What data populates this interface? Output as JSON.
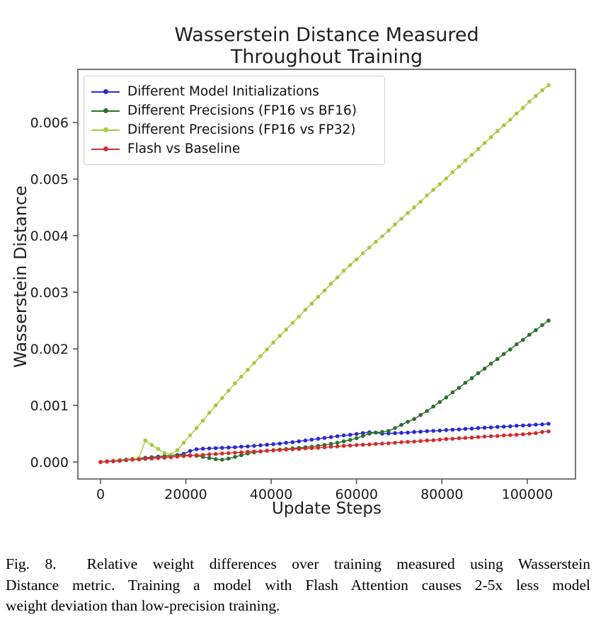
{
  "colors": {
    "blue_series": "#2a2ad2",
    "darkgreen_series": "#2d6e2d",
    "lightgreen_series": "#a5c940",
    "red_series": "#d22c2c",
    "spine": "#4a4a4a",
    "tick_text": "#1a1a1a"
  },
  "chart_data": {
    "type": "line",
    "title": "Wasserstein Distance Measured Throughout Training",
    "title_lines": [
      "Wasserstein Distance Measured",
      "Throughout Training"
    ],
    "xlabel": "Update Steps",
    "ylabel": "Wasserstein Distance",
    "grid": false,
    "legend_position": "upper left",
    "marker": "dot",
    "xlim": [
      -5300,
      111300
    ],
    "ylim": [
      -0.0003,
      0.00694
    ],
    "xticks": [
      {
        "value": 0,
        "label": "0"
      },
      {
        "value": 20000,
        "label": "20000"
      },
      {
        "value": 40000,
        "label": "40000"
      },
      {
        "value": 60000,
        "label": "60000"
      },
      {
        "value": 80000,
        "label": "80000"
      },
      {
        "value": 100000,
        "label": "100000"
      }
    ],
    "yticks": [
      {
        "value": 0.0,
        "label": "0.000"
      },
      {
        "value": 0.001,
        "label": "0.001"
      },
      {
        "value": 0.002,
        "label": "0.002"
      },
      {
        "value": 0.003,
        "label": "0.003"
      },
      {
        "value": 0.004,
        "label": "0.004"
      },
      {
        "value": 0.005,
        "label": "0.005"
      },
      {
        "value": 0.006,
        "label": "0.006"
      }
    ],
    "x": [
      0,
      1500,
      3000,
      4500,
      6000,
      7500,
      9000,
      10500,
      12000,
      13500,
      15000,
      16500,
      18000,
      19500,
      21000,
      22500,
      24000,
      25500,
      27000,
      28500,
      30000,
      31500,
      33000,
      34500,
      36000,
      37500,
      39000,
      40500,
      42000,
      43500,
      45000,
      46500,
      48000,
      49500,
      51000,
      52500,
      54000,
      55500,
      57000,
      58500,
      60000,
      61500,
      63000,
      64500,
      66000,
      67500,
      69000,
      70500,
      72000,
      73500,
      75000,
      76500,
      78000,
      79500,
      81000,
      82500,
      84000,
      85500,
      87000,
      88500,
      90000,
      91500,
      93000,
      94500,
      96000,
      97500,
      99000,
      100500,
      102000,
      103500,
      105000
    ],
    "series": [
      {
        "name": "Different Model Initializations",
        "color": "#2a2ad2",
        "values": [
          0.0,
          1.5e-05,
          2.5e-05,
          3.5e-05,
          4.5e-05,
          5.5e-05,
          6.5e-05,
          7.5e-05,
          8.5e-05,
          9.5e-05,
          0.000105,
          0.000115,
          0.000125,
          0.000145,
          0.000195,
          0.000225,
          0.000235,
          0.00024,
          0.000245,
          0.00025,
          0.000255,
          0.00026,
          0.00027,
          0.000275,
          0.000285,
          0.000295,
          0.000305,
          0.000315,
          0.000325,
          0.00034,
          0.00035,
          0.000365,
          0.00038,
          0.000395,
          0.00041,
          0.000425,
          0.00044,
          0.000455,
          0.00047,
          0.00048,
          0.000495,
          0.00051,
          0.000525,
          0.00052,
          0.0005,
          0.000505,
          0.00051,
          0.000515,
          0.00052,
          0.00053,
          0.000535,
          0.000545,
          0.00055,
          0.000555,
          0.000565,
          0.00057,
          0.000575,
          0.000585,
          0.00059,
          0.0006,
          0.000605,
          0.00061,
          0.00062,
          0.000625,
          0.00063,
          0.00064,
          0.000645,
          0.00065,
          0.00066,
          0.000665,
          0.000675
        ]
      },
      {
        "name": "Different Precisions (FP16 vs BF16)",
        "color": "#2d6e2d",
        "values": [
          0.0,
          1e-05,
          2e-05,
          3e-05,
          4e-05,
          5e-05,
          6e-05,
          7e-05,
          8e-05,
          9e-05,
          0.0001,
          0.00011,
          0.00012,
          0.000125,
          0.00012,
          0.00011,
          9e-05,
          7e-05,
          5e-05,
          4e-05,
          6e-05,
          9e-05,
          0.00012,
          0.00015,
          0.00017,
          0.000185,
          0.0002,
          0.00021,
          0.00022,
          0.00023,
          0.00024,
          0.00025,
          0.00026,
          0.00027,
          0.000285,
          0.0003,
          0.00032,
          0.00034,
          0.000365,
          0.00039,
          0.00042,
          0.00046,
          0.0005,
          0.00052,
          0.00053,
          0.00055,
          0.0006,
          0.000655,
          0.00071,
          0.00076,
          0.00083,
          0.0009,
          0.00098,
          0.00106,
          0.00114,
          0.00123,
          0.00131,
          0.0014,
          0.00148,
          0.00157,
          0.00165,
          0.00174,
          0.00182,
          0.00191,
          0.00199,
          0.00208,
          0.00216,
          0.00225,
          0.00233,
          0.00242,
          0.0025
        ]
      },
      {
        "name": "Different Precisions (FP16 vs FP32)",
        "color": "#a5c940",
        "values": [
          0.0,
          1e-05,
          2e-05,
          3e-05,
          4e-05,
          5e-05,
          7e-05,
          0.00038,
          0.0003,
          0.00023,
          0.00016,
          0.00013,
          0.00021,
          0.00034,
          0.00047,
          0.0006,
          0.00073,
          0.00087,
          0.001,
          0.00113,
          0.00126,
          0.00139,
          0.00151,
          0.00163,
          0.00175,
          0.00187,
          0.00199,
          0.00211,
          0.00223,
          0.00234,
          0.00246,
          0.00257,
          0.00269,
          0.0028,
          0.00292,
          0.00303,
          0.00315,
          0.00326,
          0.00338,
          0.00348,
          0.00358,
          0.00369,
          0.00379,
          0.00389,
          0.00399,
          0.00409,
          0.0042,
          0.0043,
          0.0044,
          0.0045,
          0.0046,
          0.00471,
          0.00481,
          0.00491,
          0.00501,
          0.00512,
          0.00522,
          0.00533,
          0.00543,
          0.00553,
          0.00564,
          0.00574,
          0.00585,
          0.00595,
          0.00605,
          0.00616,
          0.00626,
          0.00637,
          0.00647,
          0.00657,
          0.00666
        ]
      },
      {
        "name": "Flash vs Baseline",
        "color": "#d22c2c",
        "values": [
          0.0,
          5e-06,
          1e-05,
          2e-05,
          3e-05,
          4e-05,
          4.5e-05,
          5.5e-05,
          6e-05,
          7e-05,
          7.5e-05,
          8.5e-05,
          9.5e-05,
          0.000105,
          0.00011,
          0.00012,
          0.000125,
          0.000135,
          0.00014,
          0.00015,
          0.000155,
          0.000165,
          0.00017,
          0.00018,
          0.000185,
          0.00019,
          0.0002,
          0.000205,
          0.00021,
          0.00022,
          0.000225,
          0.00023,
          0.00024,
          0.000245,
          0.00025,
          0.00026,
          0.00027,
          0.000275,
          0.000285,
          0.00029,
          0.0003,
          0.000305,
          0.00031,
          0.00032,
          0.000325,
          0.00033,
          0.00034,
          0.00035,
          0.000355,
          0.00036,
          0.00037,
          0.00038,
          0.000385,
          0.000395,
          0.000405,
          0.00041,
          0.00042,
          0.000425,
          0.00043,
          0.00044,
          0.00045,
          0.000455,
          0.00046,
          0.00047,
          0.000475,
          0.00048,
          0.00049,
          0.0005,
          0.00051,
          0.00053,
          0.00054
        ]
      }
    ]
  },
  "caption": {
    "line1": "Fig. 8.  Relative weight differences over training measured using Wasserstein",
    "line2": "Distance metric. Training a model with Flash Attention causes 2-5x less model",
    "line3": "weight deviation than low-precision training."
  }
}
